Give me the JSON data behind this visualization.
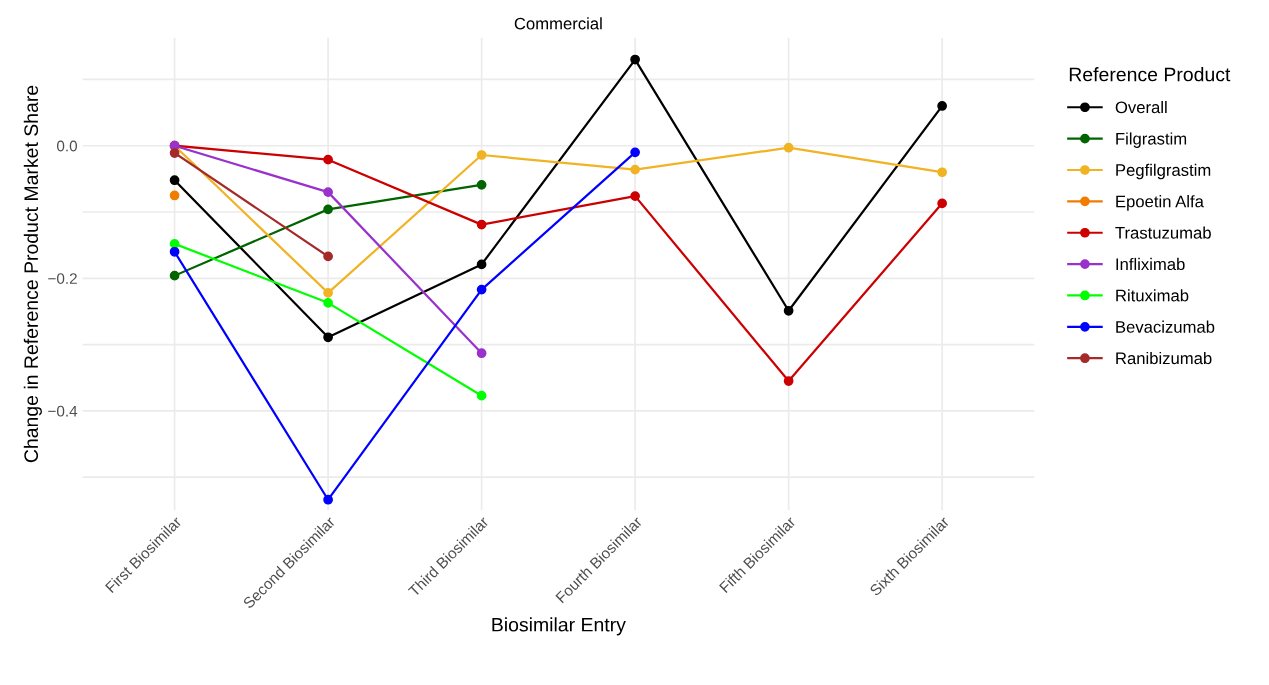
{
  "chart_data": {
    "type": "line",
    "title": "Commercial",
    "xlabel": "Biosimilar Entry",
    "ylabel": "Change in Reference Product Market Share",
    "legend_title": "Reference Product",
    "categories": [
      "First Biosimilar",
      "Second Biosimilar",
      "Third Biosimilar",
      "Fourth Biosimilar",
      "Fifth Biosimilar",
      "Sixth Biosimilar"
    ],
    "series": [
      {
        "name": "Overall",
        "color": "#000000",
        "values": [
          -0.052,
          -0.289,
          -0.179,
          0.13,
          -0.249,
          0.06
        ]
      },
      {
        "name": "Filgrastim",
        "color": "#006400",
        "values": [
          -0.196,
          -0.096,
          -0.059,
          null,
          null,
          null
        ]
      },
      {
        "name": "Pegfilgrastim",
        "color": "#f0b323",
        "values": [
          0.0,
          -0.222,
          -0.014,
          -0.036,
          -0.003,
          -0.04
        ]
      },
      {
        "name": "Epoetin Alfa",
        "color": "#f07c00",
        "values": [
          -0.075,
          null,
          null,
          null,
          null,
          null
        ]
      },
      {
        "name": "Trastuzumab",
        "color": "#cc0000",
        "values": [
          0.0,
          -0.021,
          -0.119,
          -0.076,
          -0.355,
          -0.087
        ]
      },
      {
        "name": "Infliximab",
        "color": "#9932cc",
        "values": [
          0.0,
          -0.07,
          -0.313,
          null,
          null,
          null
        ]
      },
      {
        "name": "Rituximab",
        "color": "#00ff00",
        "values": [
          -0.148,
          -0.237,
          -0.377,
          null,
          null,
          null
        ]
      },
      {
        "name": "Bevacizumab",
        "color": "#0000ff",
        "values": [
          -0.16,
          -0.534,
          -0.217,
          -0.01,
          null,
          null
        ]
      },
      {
        "name": "Ranibizumab",
        "color": "#a52a2a",
        "values": [
          -0.011,
          -0.167,
          null,
          null,
          null,
          null
        ]
      }
    ],
    "ylim": [
      -0.55,
      0.163
    ],
    "yticks": [
      {
        "value": -0.5,
        "label": null
      },
      {
        "value": -0.4,
        "label": "−0.4"
      },
      {
        "value": -0.3,
        "label": null
      },
      {
        "value": -0.2,
        "label": "−0.2"
      },
      {
        "value": -0.1,
        "label": null
      },
      {
        "value": 0.0,
        "label": "0.0"
      },
      {
        "value": 0.1,
        "label": null
      }
    ],
    "grid": true,
    "legend": "right",
    "marker": "circle",
    "line_style": "solid"
  }
}
